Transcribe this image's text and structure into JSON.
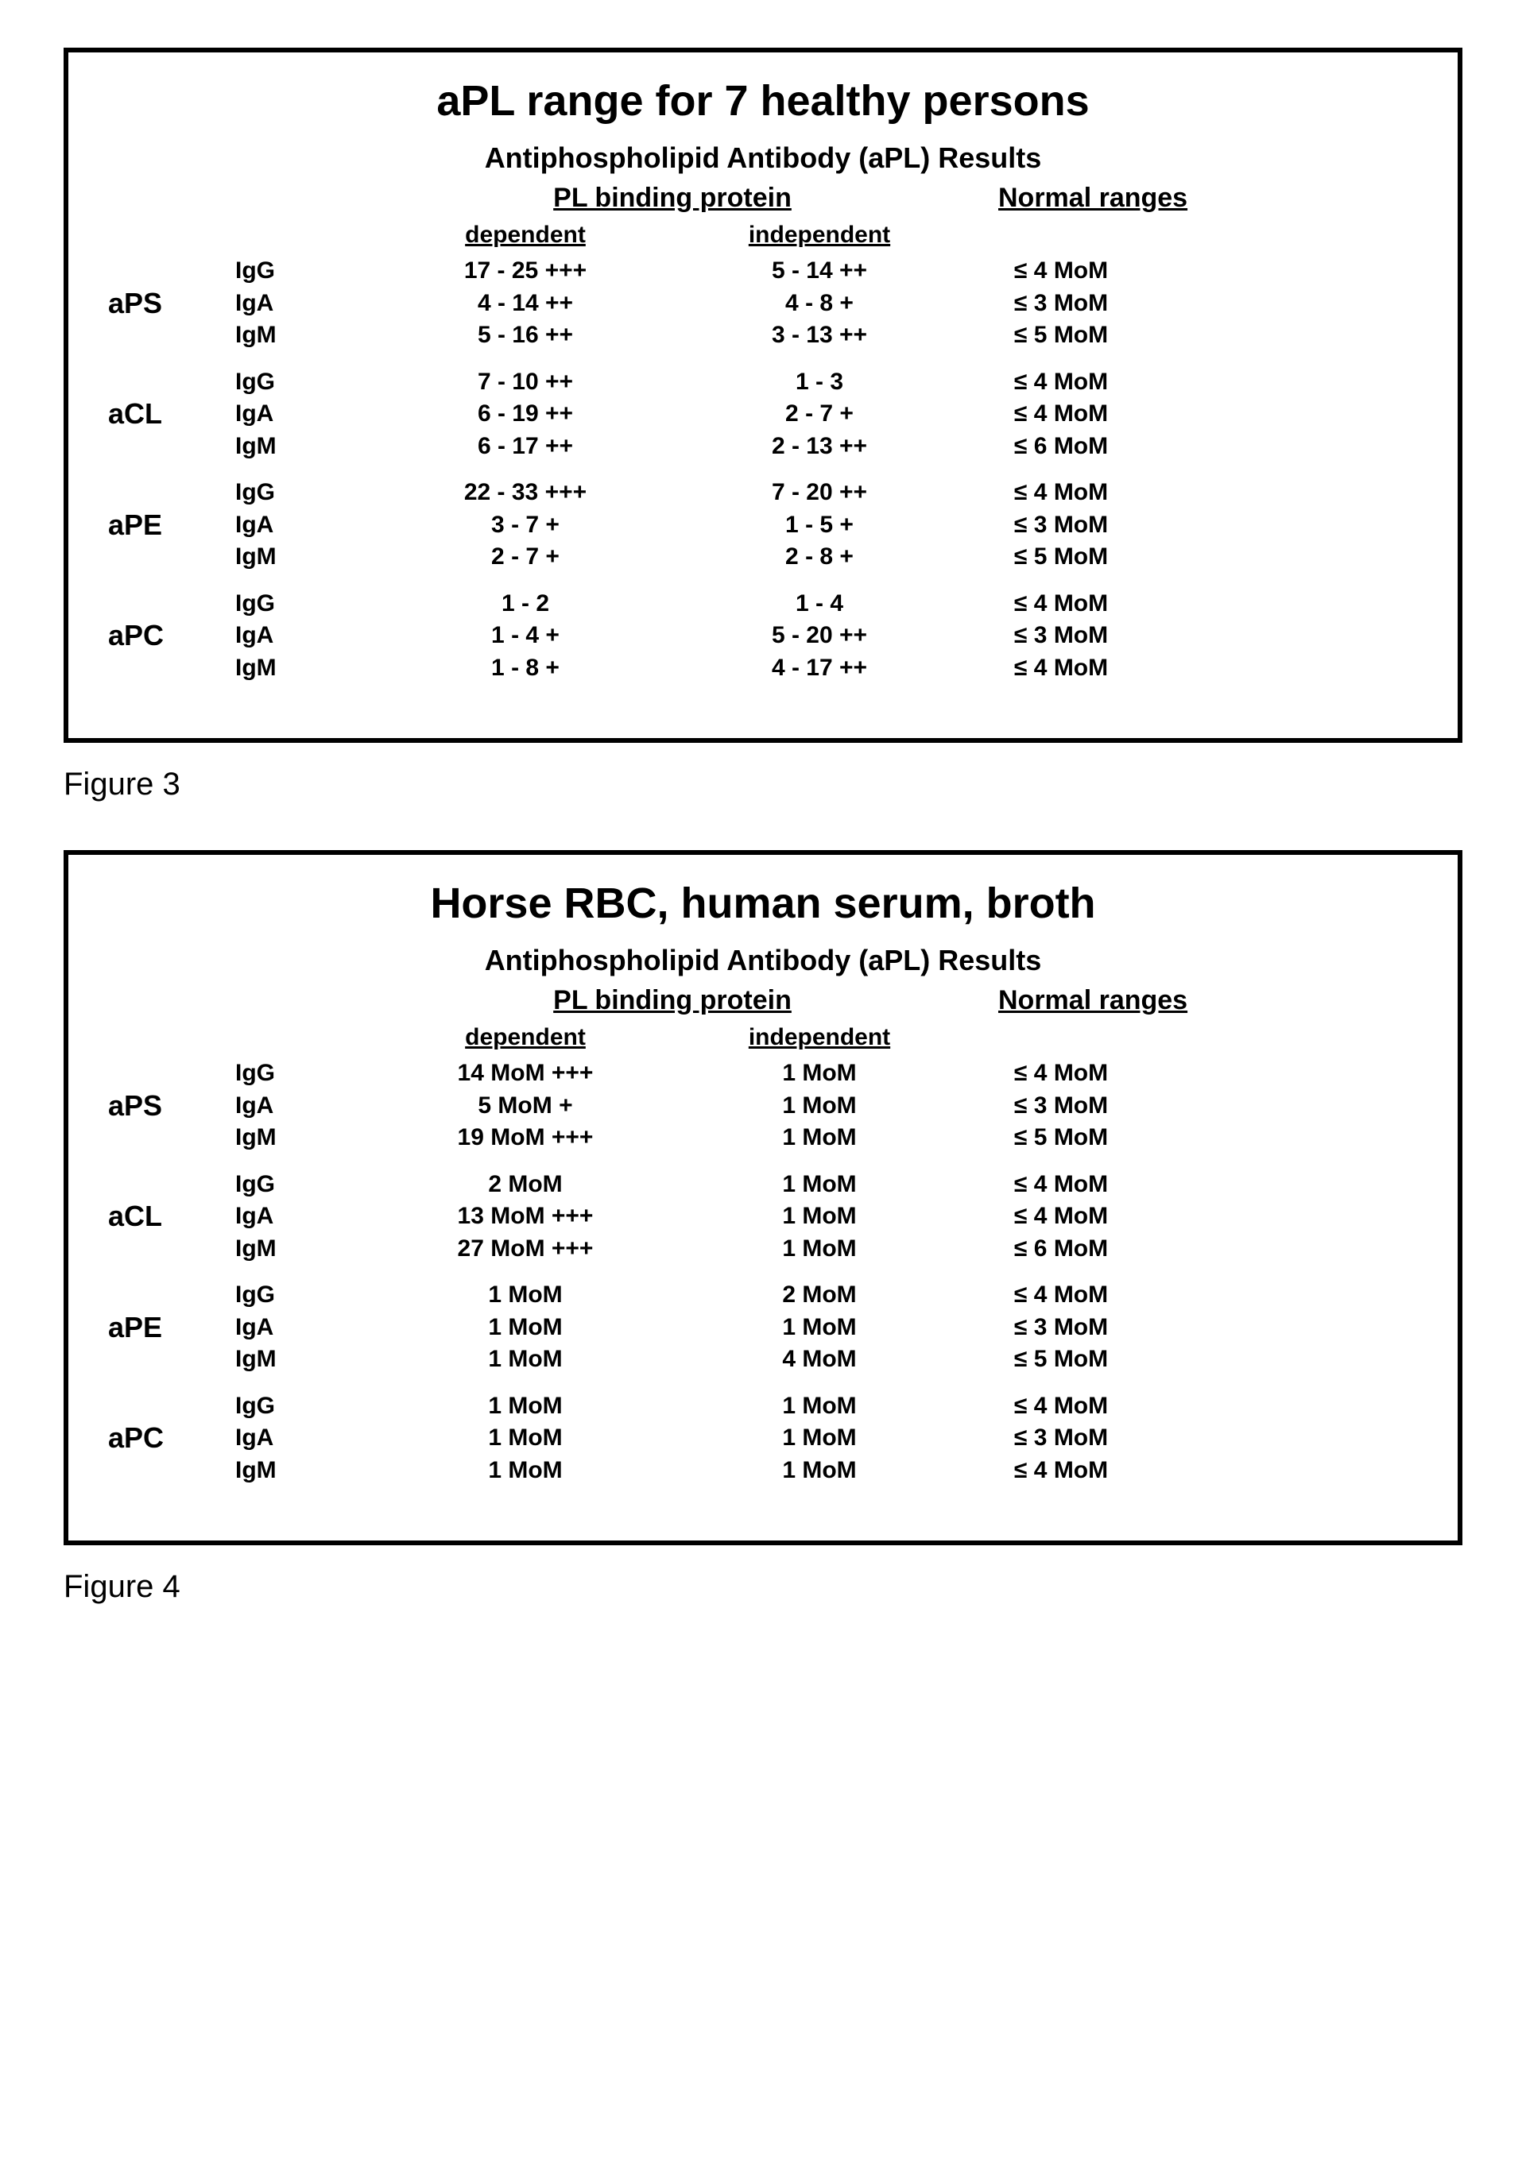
{
  "page": {
    "background_color": "#ffffff",
    "text_color": "#000000",
    "border_color": "#000000",
    "font_family": "Arial, Helvetica, sans-serif",
    "title_fontsize_pt": 40,
    "subtitle_fontsize_pt": 27,
    "header_fontsize_pt": 25,
    "body_fontsize_pt": 22,
    "caption_fontsize_pt": 30
  },
  "labels": {
    "pl_binding_protein": "PL binding protein",
    "normal_ranges": "Normal ranges",
    "dependent": "dependent",
    "independent": "independent",
    "subtitle": "Antiphospholipid Antibody (aPL) Results"
  },
  "figure3": {
    "caption": "Figure 3",
    "title": "aPL range for 7 healthy persons",
    "groups": [
      {
        "name": "aPS",
        "rows": [
          {
            "ig": "IgG",
            "dependent": "17 - 25 +++",
            "independent": "5 - 14 ++",
            "normal": "≤  4 MoM"
          },
          {
            "ig": "IgA",
            "dependent": "4 - 14 ++",
            "independent": "4 -  8 +",
            "normal": "≤  3 MoM"
          },
          {
            "ig": "IgM",
            "dependent": "5 - 16 ++",
            "independent": "3 - 13 ++",
            "normal": "≤  5 MoM"
          }
        ]
      },
      {
        "name": "aCL",
        "rows": [
          {
            "ig": "IgG",
            "dependent": "7 - 10 ++",
            "independent": "1 -  3",
            "normal": "≤  4 MoM"
          },
          {
            "ig": "IgA",
            "dependent": "6 - 19 ++",
            "independent": "2 -  7 +",
            "normal": "≤  4 MoM"
          },
          {
            "ig": "IgM",
            "dependent": "6 - 17 ++",
            "independent": "2 - 13 ++",
            "normal": "≤  6 MoM"
          }
        ]
      },
      {
        "name": "aPE",
        "rows": [
          {
            "ig": "IgG",
            "dependent": "22 - 33 +++",
            "independent": "7 - 20 ++",
            "normal": "≤  4 MoM"
          },
          {
            "ig": "IgA",
            "dependent": "3 -  7 +",
            "independent": "1 -  5 +",
            "normal": "≤  3 MoM"
          },
          {
            "ig": "IgM",
            "dependent": "2 -  7 +",
            "independent": "2 -  8 +",
            "normal": "≤  5 MoM"
          }
        ]
      },
      {
        "name": "aPC",
        "rows": [
          {
            "ig": "IgG",
            "dependent": "1 -  2",
            "independent": "1 -  4",
            "normal": "≤  4 MoM"
          },
          {
            "ig": "IgA",
            "dependent": "1 -  4 +",
            "independent": "5 - 20 ++",
            "normal": "≤  3 MoM"
          },
          {
            "ig": "IgM",
            "dependent": "1 -  8 +",
            "independent": "4 - 17 ++",
            "normal": "≤  4 MoM"
          }
        ]
      }
    ]
  },
  "figure4": {
    "caption": "Figure 4",
    "title": "Horse RBC, human serum, broth",
    "groups": [
      {
        "name": "aPS",
        "rows": [
          {
            "ig": "IgG",
            "dependent": "14 MoM +++",
            "independent": "1 MoM",
            "normal": "≤  4 MoM"
          },
          {
            "ig": "IgA",
            "dependent": "5 MoM +",
            "independent": "1 MoM",
            "normal": "≤  3 MoM"
          },
          {
            "ig": "IgM",
            "dependent": "19 MoM +++",
            "independent": "1 MoM",
            "normal": "≤  5 MoM"
          }
        ]
      },
      {
        "name": "aCL",
        "rows": [
          {
            "ig": "IgG",
            "dependent": "2 MoM",
            "independent": "1 MoM",
            "normal": "≤  4 MoM"
          },
          {
            "ig": "IgA",
            "dependent": "13 MoM +++",
            "independent": "1 MoM",
            "normal": "≤  4 MoM"
          },
          {
            "ig": "IgM",
            "dependent": "27 MoM +++",
            "independent": "1 MoM",
            "normal": "≤  6 MoM"
          }
        ]
      },
      {
        "name": "aPE",
        "rows": [
          {
            "ig": "IgG",
            "dependent": "1 MoM",
            "independent": "2 MoM",
            "normal": "≤  4 MoM"
          },
          {
            "ig": "IgA",
            "dependent": "1 MoM",
            "independent": "1 MoM",
            "normal": "≤  3 MoM"
          },
          {
            "ig": "IgM",
            "dependent": "1 MoM",
            "independent": "4 MoM",
            "normal": "≤  5 MoM"
          }
        ]
      },
      {
        "name": "aPC",
        "rows": [
          {
            "ig": "IgG",
            "dependent": "1 MoM",
            "independent": "1 MoM",
            "normal": "≤  4 MoM"
          },
          {
            "ig": "IgA",
            "dependent": "1 MoM",
            "independent": "1 MoM",
            "normal": "≤  3 MoM"
          },
          {
            "ig": "IgM",
            "dependent": "1 MoM",
            "independent": "1 MoM",
            "normal": "≤  4 MoM"
          }
        ]
      }
    ]
  }
}
